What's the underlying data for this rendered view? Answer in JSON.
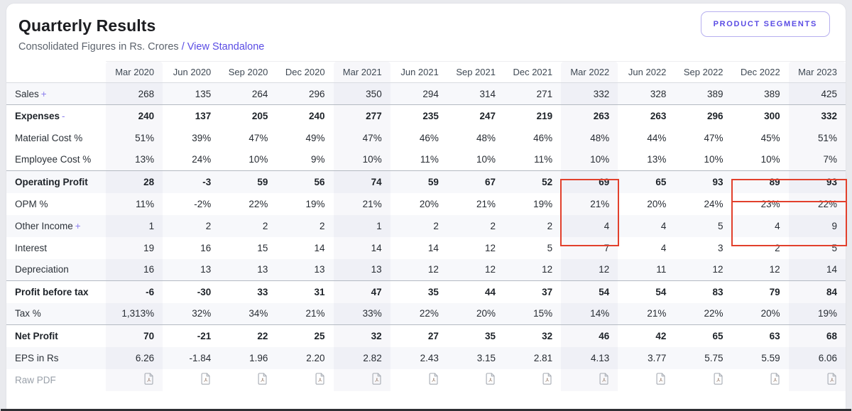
{
  "header": {
    "title": "Quarterly Results",
    "subtitle": "Consolidated Figures in Rs. Crores",
    "separator": "/",
    "view_link": "View Standalone",
    "segments_button": "PRODUCT SEGMENTS"
  },
  "colors": {
    "accent": "#5a4ce4",
    "highlight_red": "#e2402c",
    "row_stripe": "#f7f8fb",
    "strong_row_border": "#b4bac2"
  },
  "table": {
    "columns": [
      "Mar 2020",
      "Jun 2020",
      "Sep 2020",
      "Dec 2020",
      "Mar 2021",
      "Jun 2021",
      "Sep 2021",
      "Dec 2021",
      "Mar 2022",
      "Jun 2022",
      "Sep 2022",
      "Dec 2022",
      "Mar 2023"
    ],
    "fy_columns": [
      0,
      4,
      8,
      12
    ],
    "rows": [
      {
        "label": "Sales",
        "suffix": "+",
        "strong": false,
        "stripe": true,
        "type": "values",
        "values": [
          "268",
          "135",
          "264",
          "296",
          "350",
          "294",
          "314",
          "271",
          "332",
          "328",
          "389",
          "389",
          "425"
        ]
      },
      {
        "label": "Expenses",
        "suffix": "-",
        "strong": true,
        "stripe": false,
        "type": "values",
        "values": [
          "240",
          "137",
          "205",
          "240",
          "277",
          "235",
          "247",
          "219",
          "263",
          "263",
          "296",
          "300",
          "332"
        ]
      },
      {
        "label": "Material Cost %",
        "strong": false,
        "stripe": false,
        "type": "values",
        "values": [
          "51%",
          "39%",
          "47%",
          "49%",
          "47%",
          "46%",
          "48%",
          "46%",
          "48%",
          "44%",
          "47%",
          "45%",
          "51%"
        ]
      },
      {
        "label": "Employee Cost %",
        "strong": false,
        "stripe": false,
        "type": "values",
        "values": [
          "13%",
          "24%",
          "10%",
          "9%",
          "10%",
          "11%",
          "10%",
          "11%",
          "10%",
          "13%",
          "10%",
          "10%",
          "7%"
        ]
      },
      {
        "label": "Operating Profit",
        "strong": true,
        "stripe": true,
        "type": "values",
        "values": [
          "28",
          "-3",
          "59",
          "56",
          "74",
          "59",
          "67",
          "52",
          "69",
          "65",
          "93",
          "89",
          "93"
        ]
      },
      {
        "label": "OPM %",
        "strong": false,
        "stripe": false,
        "type": "values",
        "values": [
          "11%",
          "-2%",
          "22%",
          "19%",
          "21%",
          "20%",
          "21%",
          "19%",
          "21%",
          "20%",
          "24%",
          "23%",
          "22%"
        ]
      },
      {
        "label": "Other Income",
        "suffix": "+",
        "strong": false,
        "stripe": true,
        "type": "values",
        "values": [
          "1",
          "2",
          "2",
          "2",
          "1",
          "2",
          "2",
          "2",
          "4",
          "4",
          "5",
          "4",
          "9"
        ]
      },
      {
        "label": "Interest",
        "strong": false,
        "stripe": false,
        "type": "values",
        "values": [
          "19",
          "16",
          "15",
          "14",
          "14",
          "14",
          "12",
          "5",
          "7",
          "4",
          "3",
          "2",
          "5"
        ]
      },
      {
        "label": "Depreciation",
        "strong": false,
        "stripe": true,
        "type": "values",
        "values": [
          "16",
          "13",
          "13",
          "13",
          "13",
          "12",
          "12",
          "12",
          "12",
          "11",
          "12",
          "12",
          "14"
        ]
      },
      {
        "label": "Profit before tax",
        "strong": true,
        "stripe": false,
        "type": "values",
        "values": [
          "-6",
          "-30",
          "33",
          "31",
          "47",
          "35",
          "44",
          "37",
          "54",
          "54",
          "83",
          "79",
          "84"
        ]
      },
      {
        "label": "Tax %",
        "strong": false,
        "stripe": true,
        "type": "values",
        "values": [
          "1,313%",
          "32%",
          "34%",
          "21%",
          "33%",
          "22%",
          "20%",
          "15%",
          "14%",
          "21%",
          "22%",
          "20%",
          "19%"
        ]
      },
      {
        "label": "Net Profit",
        "strong": true,
        "stripe": false,
        "type": "values",
        "values": [
          "70",
          "-21",
          "22",
          "25",
          "32",
          "27",
          "35",
          "32",
          "46",
          "42",
          "65",
          "63",
          "68"
        ]
      },
      {
        "label": "EPS in Rs",
        "strong": false,
        "stripe": true,
        "type": "values",
        "values": [
          "6.26",
          "-1.84",
          "1.96",
          "2.20",
          "2.82",
          "2.43",
          "3.15",
          "2.81",
          "4.13",
          "3.77",
          "5.75",
          "5.59",
          "6.06"
        ]
      },
      {
        "label": "Raw PDF",
        "strong": false,
        "stripe": false,
        "muted": true,
        "type": "pdf",
        "icon": "pdf-file-icon"
      }
    ]
  },
  "highlights": [
    {
      "description": "Mar 2022: Other Income, Interest, Depreciation",
      "row_start": 6,
      "row_end": 8,
      "col_start": 8,
      "col_end": 8
    },
    {
      "description": "Dec 2022 - Mar 2023: Other Income",
      "row_start": 6,
      "row_end": 6,
      "col_start": 11,
      "col_end": 12
    },
    {
      "description": "Dec 2022 - Mar 2023: Interest, Depreciation",
      "row_start": 7,
      "row_end": 8,
      "col_start": 11,
      "col_end": 12
    }
  ]
}
